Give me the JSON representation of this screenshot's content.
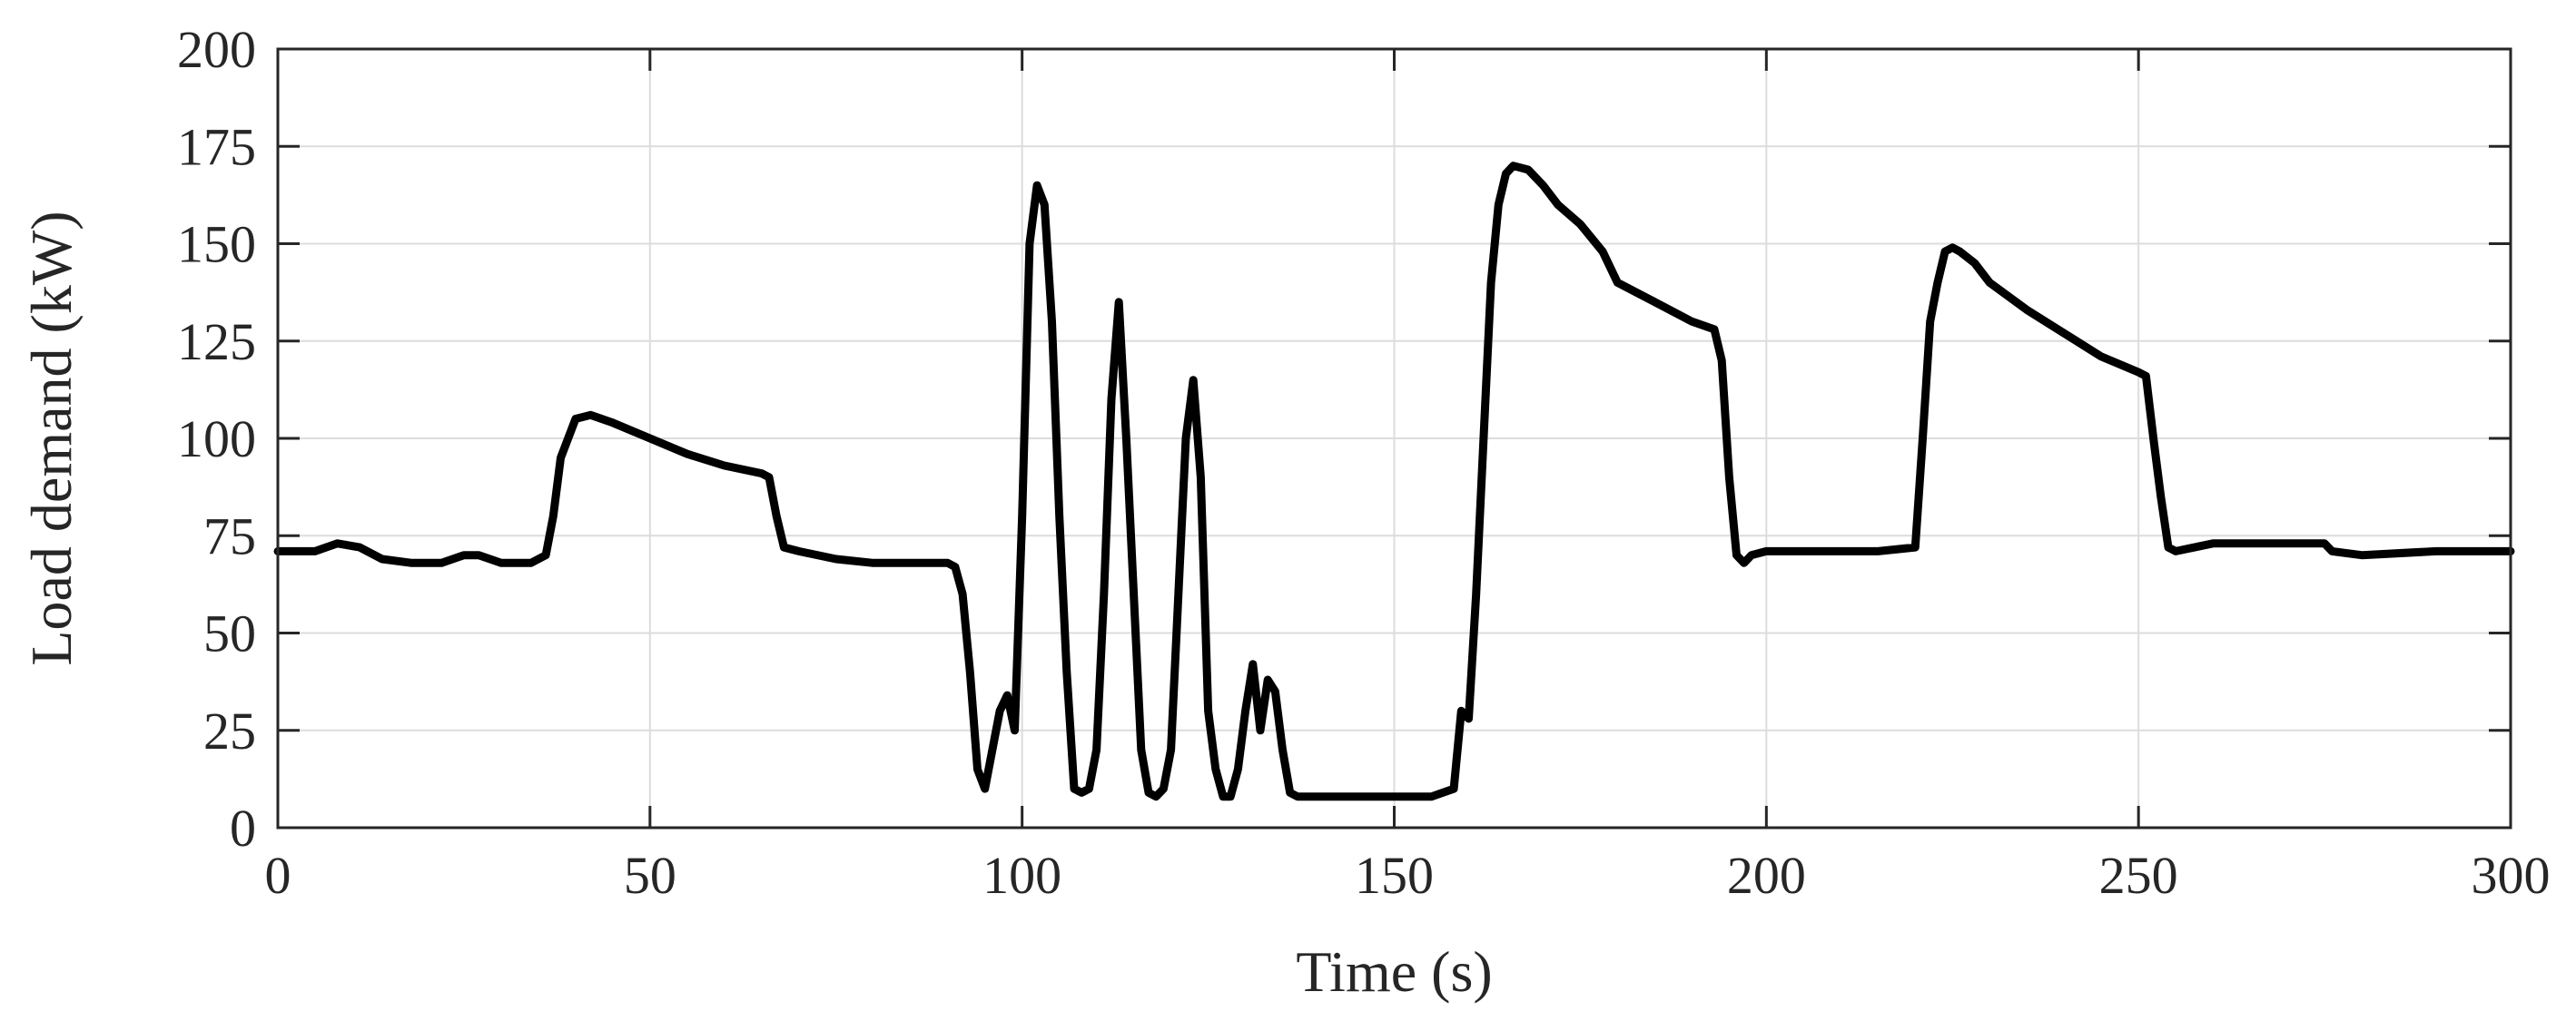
{
  "chart_data": {
    "type": "line",
    "title": "",
    "xlabel": "Time (s)",
    "ylabel": "Load demand (kW)",
    "xlim": [
      0,
      300
    ],
    "ylim": [
      0,
      200
    ],
    "xticks": [
      0,
      50,
      100,
      150,
      200,
      250,
      300
    ],
    "yticks": [
      0,
      25,
      50,
      75,
      100,
      125,
      150,
      175,
      200
    ],
    "grid": true,
    "legend": "none",
    "line_color": "#000000",
    "series": [
      {
        "x": [
          0,
          5,
          8,
          11,
          14,
          18,
          22,
          25,
          27,
          30,
          34,
          36,
          37,
          38,
          40,
          42,
          45,
          50,
          55,
          60,
          65,
          66,
          67,
          68,
          70,
          75,
          80,
          85,
          90,
          91,
          92,
          93,
          94,
          95,
          96,
          97,
          98,
          99,
          100,
          101,
          102,
          103,
          104,
          105,
          106,
          107,
          108,
          109,
          110,
          111,
          112,
          113,
          114,
          115,
          116,
          117,
          118,
          119,
          120,
          121,
          122,
          123,
          124,
          125,
          126,
          127,
          128,
          129,
          130,
          131,
          132,
          133,
          134,
          135,
          136,
          137,
          140,
          145,
          150,
          155,
          158,
          159,
          160,
          161,
          162,
          163,
          164,
          165,
          166,
          168,
          170,
          172,
          175,
          178,
          180,
          185,
          190,
          193,
          194,
          195,
          196,
          197,
          198,
          200,
          205,
          210,
          215,
          220,
          221,
          222,
          223,
          224,
          225,
          226,
          228,
          230,
          235,
          240,
          245,
          250,
          251,
          252,
          253,
          254,
          255,
          260,
          265,
          270,
          275,
          276,
          280,
          290,
          300
        ],
        "y": [
          71,
          71,
          73,
          72,
          69,
          68,
          68,
          70,
          70,
          68,
          68,
          70,
          80,
          95,
          105,
          106,
          104,
          100,
          96,
          93,
          91,
          90,
          80,
          72,
          71,
          69,
          68,
          68,
          68,
          67,
          60,
          40,
          15,
          10,
          20,
          30,
          34,
          25,
          80,
          150,
          165,
          160,
          130,
          80,
          40,
          10,
          9,
          10,
          20,
          60,
          110,
          135,
          100,
          60,
          20,
          9,
          8,
          10,
          20,
          60,
          100,
          115,
          90,
          30,
          15,
          8,
          8,
          15,
          30,
          42,
          25,
          38,
          35,
          20,
          9,
          8,
          8,
          8,
          8,
          8,
          10,
          30,
          28,
          60,
          100,
          140,
          160,
          168,
          170,
          169,
          165,
          160,
          155,
          148,
          140,
          135,
          130,
          128,
          120,
          90,
          70,
          68,
          70,
          71,
          71,
          71,
          71,
          72,
          100,
          130,
          140,
          148,
          149,
          148,
          145,
          140,
          133,
          127,
          121,
          117,
          116,
          100,
          85,
          72,
          71,
          73,
          73,
          73,
          73,
          71,
          70,
          71,
          71
        ]
      }
    ]
  }
}
